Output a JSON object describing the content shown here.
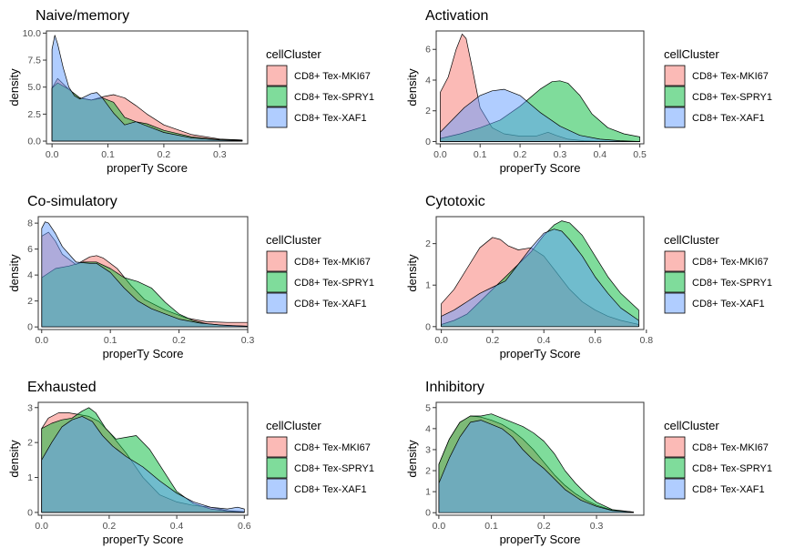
{
  "legend": {
    "title": "cellCluster",
    "entries": [
      "CD8+ Tex-MKI67",
      "CD8+ Tex-SPRY1",
      "CD8+ Tex-XAF1"
    ]
  },
  "colors": {
    "CD8+ Tex-MKI67": "#F8766D",
    "CD8+ Tex-SPRY1": "#00BA38",
    "CD8+ Tex-XAF1": "#619CFF"
  },
  "chart_data": [
    {
      "type": "area",
      "title": "Naive/memory",
      "xlabel": "properTy Score",
      "ylabel": "density",
      "xlim": [
        -0.01,
        0.35
      ],
      "ylim": [
        -0.25,
        10.2
      ],
      "xticks": [
        0.0,
        0.1,
        0.2,
        0.3
      ],
      "xtick_labels": [
        "0.0",
        "0.1",
        "0.2",
        "0.3"
      ],
      "yticks": [
        0,
        2.5,
        5,
        7.5,
        10
      ],
      "ytick_labels": [
        "0.0",
        "2.5",
        "5.0",
        "7.5",
        "10.0"
      ],
      "grid": false,
      "legend_position": "right",
      "series": [
        {
          "name": "CD8+ Tex-MKI67",
          "x": [
            0,
            0.01,
            0.03,
            0.05,
            0.07,
            0.09,
            0.11,
            0.13,
            0.15,
            0.17,
            0.2,
            0.25,
            0.3,
            0.34
          ],
          "y": [
            4.9,
            5.8,
            4.8,
            4.0,
            3.8,
            4.1,
            4.3,
            4.0,
            3.3,
            2.5,
            1.5,
            0.6,
            0.2,
            0.1
          ]
        },
        {
          "name": "CD8+ Tex-SPRY1",
          "x": [
            0,
            0.01,
            0.03,
            0.05,
            0.07,
            0.09,
            0.11,
            0.13,
            0.15,
            0.17,
            0.2,
            0.25,
            0.3,
            0.34
          ],
          "y": [
            4.9,
            5.4,
            4.8,
            4.0,
            3.8,
            4.0,
            3.6,
            2.2,
            1.8,
            1.6,
            1.0,
            0.4,
            0.15,
            0.1
          ]
        },
        {
          "name": "CD8+ Tex-XAF1",
          "x": [
            0,
            0.005,
            0.01,
            0.02,
            0.03,
            0.04,
            0.05,
            0.07,
            0.08,
            0.09,
            0.11,
            0.13,
            0.15,
            0.17,
            0.2,
            0.25,
            0.3,
            0.34
          ],
          "y": [
            8.5,
            9.8,
            9.0,
            6.8,
            5.0,
            4.2,
            3.9,
            4.4,
            4.5,
            4.0,
            2.6,
            1.5,
            1.8,
            1.4,
            0.8,
            0.3,
            0.1,
            0.05
          ]
        }
      ]
    },
    {
      "type": "area",
      "title": "Activation",
      "xlabel": "properTy Score",
      "ylabel": "density",
      "xlim": [
        -0.01,
        0.51
      ],
      "ylim": [
        -0.15,
        7.2
      ],
      "xticks": [
        0.0,
        0.1,
        0.2,
        0.3,
        0.4,
        0.5
      ],
      "xtick_labels": [
        "0.0",
        "0.1",
        "0.2",
        "0.3",
        "0.4",
        "0.5"
      ],
      "yticks": [
        0,
        2,
        4,
        6
      ],
      "ytick_labels": [
        "0",
        "2",
        "4",
        "6"
      ],
      "grid": false,
      "legend_position": "right",
      "series": [
        {
          "name": "CD8+ Tex-MKI67",
          "x": [
            0,
            0.02,
            0.04,
            0.055,
            0.065,
            0.08,
            0.1,
            0.13,
            0.16,
            0.2,
            0.24,
            0.27,
            0.29,
            0.32,
            0.36,
            0.4,
            0.45,
            0.5
          ],
          "y": [
            3.2,
            4.2,
            6.0,
            7.0,
            6.7,
            4.8,
            2.2,
            0.9,
            0.5,
            0.35,
            0.35,
            0.6,
            0.4,
            0.15,
            0.05,
            0.02,
            0.01,
            0.0
          ]
        },
        {
          "name": "CD8+ Tex-SPRY1",
          "x": [
            0,
            0.05,
            0.1,
            0.15,
            0.2,
            0.25,
            0.28,
            0.3,
            0.32,
            0.35,
            0.38,
            0.42,
            0.46,
            0.5
          ],
          "y": [
            0.2,
            0.5,
            0.9,
            1.4,
            2.3,
            3.4,
            3.9,
            3.95,
            3.8,
            3.0,
            1.8,
            0.9,
            0.5,
            0.3
          ]
        },
        {
          "name": "CD8+ Tex-XAF1",
          "x": [
            0,
            0.03,
            0.06,
            0.1,
            0.13,
            0.16,
            0.2,
            0.25,
            0.3,
            0.35,
            0.4,
            0.45,
            0.5
          ],
          "y": [
            0.6,
            1.4,
            2.2,
            3.0,
            3.3,
            3.4,
            3.0,
            1.9,
            1.0,
            0.4,
            0.15,
            0.05,
            0.0
          ]
        }
      ]
    },
    {
      "type": "area",
      "title": "Co-simulatory",
      "xlabel": "properTy Score",
      "ylabel": "density",
      "xlim": [
        -0.005,
        0.3
      ],
      "ylim": [
        -0.2,
        8.5
      ],
      "xticks": [
        0.0,
        0.1,
        0.2,
        0.3
      ],
      "xtick_labels": [
        "0.0",
        "0.1",
        "0.2",
        "0.3"
      ],
      "yticks": [
        0,
        2,
        4,
        6,
        8
      ],
      "ytick_labels": [
        "0",
        "2",
        "4",
        "6",
        "8"
      ],
      "grid": false,
      "legend_position": "right",
      "series": [
        {
          "name": "CD8+ Tex-MKI67",
          "x": [
            0,
            0.01,
            0.02,
            0.03,
            0.05,
            0.07,
            0.08,
            0.09,
            0.11,
            0.13,
            0.15,
            0.18,
            0.21,
            0.24,
            0.27,
            0.3
          ],
          "y": [
            7.0,
            7.3,
            6.6,
            5.6,
            4.8,
            5.4,
            5.5,
            5.3,
            4.5,
            3.2,
            2.1,
            1.3,
            0.7,
            0.4,
            0.35,
            0.35
          ]
        },
        {
          "name": "CD8+ Tex-SPRY1",
          "x": [
            0,
            0.02,
            0.04,
            0.06,
            0.08,
            0.1,
            0.12,
            0.14,
            0.16,
            0.18,
            0.2,
            0.22,
            0.24,
            0.27,
            0.3
          ],
          "y": [
            3.8,
            4.5,
            4.7,
            5.0,
            5.0,
            4.5,
            3.8,
            3.5,
            3.0,
            1.9,
            1.0,
            0.5,
            0.25,
            0.1,
            0.05
          ]
        },
        {
          "name": "CD8+ Tex-XAF1",
          "x": [
            0,
            0.005,
            0.01,
            0.02,
            0.03,
            0.05,
            0.07,
            0.08,
            0.1,
            0.12,
            0.14,
            0.16,
            0.18,
            0.2,
            0.23,
            0.26,
            0.3
          ],
          "y": [
            7.6,
            8.1,
            8.0,
            7.2,
            6.2,
            5.0,
            4.9,
            4.9,
            4.2,
            3.0,
            2.0,
            1.4,
            1.0,
            0.6,
            0.3,
            0.15,
            0.05
          ]
        }
      ]
    },
    {
      "type": "area",
      "title": "Cytotoxic",
      "xlabel": "properTy Score",
      "ylabel": "density",
      "xlim": [
        -0.02,
        0.79
      ],
      "ylim": [
        -0.07,
        2.65
      ],
      "xticks": [
        0.0,
        0.2,
        0.4,
        0.6,
        0.8
      ],
      "xtick_labels": [
        "0.0",
        "0.2",
        "0.4",
        "0.6",
        "0.8"
      ],
      "yticks": [
        0,
        1,
        2
      ],
      "ytick_labels": [
        "0",
        "1",
        "2"
      ],
      "grid": false,
      "legend_position": "right",
      "series": [
        {
          "name": "CD8+ Tex-MKI67",
          "x": [
            0,
            0.05,
            0.1,
            0.15,
            0.2,
            0.23,
            0.26,
            0.3,
            0.35,
            0.4,
            0.45,
            0.5,
            0.55,
            0.6,
            0.65,
            0.7,
            0.77
          ],
          "y": [
            0.55,
            0.9,
            1.4,
            1.9,
            2.15,
            2.1,
            1.95,
            1.85,
            1.9,
            1.7,
            1.3,
            0.9,
            0.6,
            0.4,
            0.25,
            0.15,
            0.05
          ]
        },
        {
          "name": "CD8+ Tex-SPRY1",
          "x": [
            0,
            0.05,
            0.1,
            0.15,
            0.2,
            0.25,
            0.3,
            0.35,
            0.4,
            0.44,
            0.47,
            0.5,
            0.55,
            0.6,
            0.65,
            0.7,
            0.77
          ],
          "y": [
            0.05,
            0.15,
            0.3,
            0.6,
            0.9,
            1.2,
            1.5,
            1.8,
            2.2,
            2.45,
            2.55,
            2.5,
            2.2,
            1.7,
            1.2,
            0.8,
            0.4
          ]
        },
        {
          "name": "CD8+ Tex-XAF1",
          "x": [
            0,
            0.05,
            0.1,
            0.15,
            0.2,
            0.25,
            0.3,
            0.35,
            0.4,
            0.44,
            0.47,
            0.5,
            0.55,
            0.6,
            0.65,
            0.7,
            0.77
          ],
          "y": [
            0.25,
            0.4,
            0.6,
            0.8,
            0.95,
            1.1,
            1.5,
            1.9,
            2.25,
            2.35,
            2.3,
            2.1,
            1.7,
            1.2,
            0.8,
            0.45,
            0.15
          ]
        }
      ]
    },
    {
      "type": "area",
      "title": "Exhausted",
      "xlabel": "properTy Score",
      "ylabel": "density",
      "xlim": [
        -0.01,
        0.61
      ],
      "ylim": [
        -0.08,
        3.15
      ],
      "xticks": [
        0.0,
        0.2,
        0.4,
        0.6
      ],
      "xtick_labels": [
        "0.0",
        "0.2",
        "0.4",
        "0.6"
      ],
      "yticks": [
        0,
        1,
        2,
        3
      ],
      "ytick_labels": [
        "0",
        "1",
        "2",
        "3"
      ],
      "grid": false,
      "legend_position": "right",
      "series": [
        {
          "name": "CD8+ Tex-MKI67",
          "x": [
            0,
            0.02,
            0.05,
            0.08,
            0.11,
            0.14,
            0.17,
            0.2,
            0.25,
            0.3,
            0.35,
            0.4,
            0.45,
            0.5,
            0.55,
            0.6
          ],
          "y": [
            2.4,
            2.7,
            2.85,
            2.85,
            2.8,
            2.75,
            2.6,
            2.3,
            1.7,
            1.0,
            0.5,
            0.3,
            0.2,
            0.15,
            0.05,
            0.02
          ]
        },
        {
          "name": "CD8+ Tex-SPRY1",
          "x": [
            0,
            0.03,
            0.06,
            0.09,
            0.12,
            0.14,
            0.16,
            0.19,
            0.22,
            0.25,
            0.28,
            0.32,
            0.36,
            0.4,
            0.45,
            0.5,
            0.55,
            0.6
          ],
          "y": [
            2.4,
            2.55,
            2.65,
            2.7,
            2.9,
            3.0,
            2.85,
            2.4,
            2.1,
            2.15,
            2.2,
            1.8,
            1.2,
            0.6,
            0.25,
            0.1,
            0.04,
            0.01
          ]
        },
        {
          "name": "CD8+ Tex-XAF1",
          "x": [
            0,
            0.03,
            0.06,
            0.09,
            0.12,
            0.15,
            0.18,
            0.21,
            0.25,
            0.3,
            0.35,
            0.4,
            0.45,
            0.5,
            0.55,
            0.58,
            0.6
          ],
          "y": [
            1.5,
            2.0,
            2.45,
            2.65,
            2.75,
            2.6,
            2.2,
            1.9,
            1.6,
            1.3,
            0.9,
            0.55,
            0.3,
            0.15,
            0.1,
            0.15,
            0.1
          ]
        }
      ]
    },
    {
      "type": "area",
      "title": "Inhibitory",
      "xlabel": "properTy Score",
      "ylabel": "density",
      "xlim": [
        -0.005,
        0.39
      ],
      "ylim": [
        -0.12,
        5.25
      ],
      "xticks": [
        0.0,
        0.1,
        0.2,
        0.3
      ],
      "xtick_labels": [
        "0.0",
        "0.1",
        "0.2",
        "0.3"
      ],
      "yticks": [
        0,
        1,
        2,
        3,
        4,
        5
      ],
      "ytick_labels": [
        "0",
        "1",
        "2",
        "3",
        "4",
        "5"
      ],
      "grid": false,
      "legend_position": "right",
      "series": [
        {
          "name": "CD8+ Tex-MKI67",
          "x": [
            0,
            0.02,
            0.04,
            0.06,
            0.08,
            0.1,
            0.12,
            0.14,
            0.16,
            0.18,
            0.2,
            0.22,
            0.24,
            0.26,
            0.28,
            0.3,
            0.33,
            0.37
          ],
          "y": [
            2.3,
            3.5,
            4.3,
            4.6,
            4.55,
            4.4,
            4.2,
            3.9,
            3.5,
            3.0,
            2.4,
            1.8,
            1.3,
            0.9,
            0.6,
            0.35,
            0.12,
            0.03
          ]
        },
        {
          "name": "CD8+ Tex-SPRY1",
          "x": [
            0,
            0.02,
            0.04,
            0.06,
            0.08,
            0.1,
            0.12,
            0.14,
            0.16,
            0.18,
            0.2,
            0.22,
            0.24,
            0.26,
            0.28,
            0.3,
            0.33,
            0.37
          ],
          "y": [
            2.3,
            3.5,
            4.3,
            4.6,
            4.6,
            4.7,
            4.5,
            4.3,
            4.1,
            3.8,
            3.4,
            2.8,
            2.0,
            1.4,
            0.9,
            0.5,
            0.15,
            0.03
          ]
        },
        {
          "name": "CD8+ Tex-XAF1",
          "x": [
            0,
            0.02,
            0.04,
            0.06,
            0.08,
            0.1,
            0.12,
            0.14,
            0.16,
            0.18,
            0.2,
            0.22,
            0.24,
            0.27,
            0.3,
            0.33,
            0.37
          ],
          "y": [
            1.4,
            2.6,
            3.6,
            4.3,
            4.4,
            4.2,
            4.0,
            3.6,
            3.0,
            2.5,
            2.1,
            1.6,
            1.1,
            0.6,
            0.3,
            0.1,
            0.02
          ]
        }
      ]
    }
  ]
}
